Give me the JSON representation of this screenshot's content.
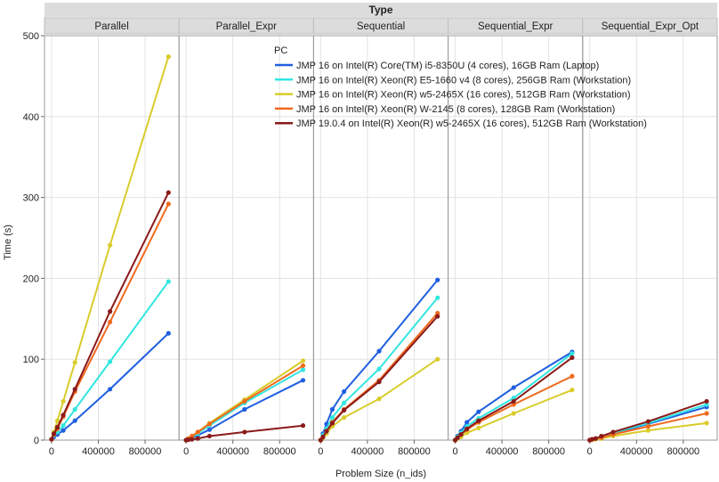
{
  "chart_data": {
    "type": "line",
    "title": "Type",
    "xlabel": "Problem Size (n_ids)",
    "ylabel": "Time (s)",
    "ylim": [
      0,
      500
    ],
    "xlim": [
      -30000,
      1060000
    ],
    "yticks": [
      0,
      100,
      200,
      300,
      400,
      500
    ],
    "xticks": [
      0,
      400000,
      800000
    ],
    "grid": true,
    "legend": {
      "title": "PC",
      "placement": "top-right"
    },
    "x": [
      0,
      20000,
      50000,
      100000,
      200000,
      500000,
      1000000
    ],
    "panels": [
      {
        "name": "Parallel",
        "series": [
          {
            "name": "JMP 16 on Intel(R) Core(TM) i5-8350U (4 cores), 16GB Ram (Laptop)",
            "color": "#1f5fe0",
            "values": [
              1,
              4,
              7,
              12,
              24,
              63,
              132
            ]
          },
          {
            "name": "JMP 16 on Intel(R) Xeon(R) E5-1660 v4 (8 cores), 256GB Ram (Workstation)",
            "color": "#33e6e0",
            "values": [
              1,
              6,
              10,
              18,
              38,
              97,
              196
            ]
          },
          {
            "name": "JMP 16 on Intel(R) Xeon(R) w5-2465X (16 cores), 512GB Ram (Workstation)",
            "color": "#d9cc2a",
            "values": [
              1,
              10,
              24,
              48,
              96,
              241,
              474
            ]
          },
          {
            "name": "JMP 16 on Intel(R) Xeon(R) W-2145 (8 cores), 128GB Ram (Workstation)",
            "color": "#f06a1e",
            "values": [
              1,
              7,
              14,
              29,
              60,
              146,
              292
            ]
          },
          {
            "name": "JMP 19.0.4 on Intel(R) Xeon(R) w5-2465X (16 cores), 512GB Ram (Workstation)",
            "color": "#8b1a1a",
            "values": [
              1,
              8,
              16,
              31,
              63,
              159,
              306
            ]
          }
        ]
      },
      {
        "name": "Parallel_Expr",
        "series": [
          {
            "name": "JMP 16 on Intel(R) Core(TM) i5-8350U (4 cores), 16GB Ram (Laptop)",
            "color": "#1f5fe0",
            "values": [
              0,
              1,
              3,
              6,
              13,
              38,
              74
            ]
          },
          {
            "name": "JMP 16 on Intel(R) Xeon(R) E5-1660 v4 (8 cores), 256GB Ram (Workstation)",
            "color": "#33e6e0",
            "values": [
              0,
              2,
              4,
              8,
              18,
              46,
              87
            ]
          },
          {
            "name": "JMP 16 on Intel(R) Xeon(R) w5-2465X (16 cores), 512GB Ram (Workstation)",
            "color": "#d9cc2a",
            "values": [
              0,
              2,
              5,
              10,
              21,
              50,
              98
            ]
          },
          {
            "name": "JMP 16 on Intel(R) Xeon(R) W-2145 (8 cores), 128GB Ram (Workstation)",
            "color": "#f06a1e",
            "values": [
              0,
              2,
              5,
              10,
              20,
              48,
              92
            ]
          },
          {
            "name": "JMP 19.0.4 on Intel(R) Xeon(R) w5-2465X (16 cores), 512GB Ram (Workstation)",
            "color": "#8b1a1a",
            "values": [
              0,
              0.5,
              1,
              2,
              5,
              10,
              18
            ]
          }
        ]
      },
      {
        "name": "Sequential",
        "series": [
          {
            "name": "JMP 16 on Intel(R) Core(TM) i5-8350U (4 cores), 16GB Ram (Laptop)",
            "color": "#1f5fe0",
            "values": [
              0,
              8,
              20,
              38,
              60,
              110,
              198
            ]
          },
          {
            "name": "JMP 16 on Intel(R) Xeon(R) E5-1660 v4 (8 cores), 256GB Ram (Workstation)",
            "color": "#33e6e0",
            "values": [
              0,
              6,
              14,
              28,
              46,
              88,
              176
            ]
          },
          {
            "name": "JMP 16 on Intel(R) Xeon(R) w5-2465X (16 cores), 512GB Ram (Workstation)",
            "color": "#d9cc2a",
            "values": [
              0,
              3,
              8,
              17,
              28,
              51,
              100
            ]
          },
          {
            "name": "JMP 16 on Intel(R) Xeon(R) W-2145 (8 cores), 128GB Ram (Workstation)",
            "color": "#f06a1e",
            "values": [
              0,
              4,
              11,
              22,
              38,
              74,
              157
            ]
          },
          {
            "name": "JMP 19.0.4 on Intel(R) Xeon(R) w5-2465X (16 cores), 512GB Ram (Workstation)",
            "color": "#8b1a1a",
            "values": [
              0,
              4,
              11,
              21,
              37,
              72,
              153
            ]
          }
        ]
      },
      {
        "name": "Sequential_Expr",
        "series": [
          {
            "name": "JMP 16 on Intel(R) Core(TM) i5-8350U (4 cores), 16GB Ram (Laptop)",
            "color": "#1f5fe0",
            "values": [
              0,
              5,
              11,
              22,
              35,
              65,
              109
            ]
          },
          {
            "name": "JMP 16 on Intel(R) Xeon(R) E5-1660 v4 (8 cores), 256GB Ram (Workstation)",
            "color": "#33e6e0",
            "values": [
              0,
              4,
              9,
              17,
              27,
              52,
              107
            ]
          },
          {
            "name": "JMP 16 on Intel(R) Xeon(R) w5-2465X (16 cores), 512GB Ram (Workstation)",
            "color": "#d9cc2a",
            "values": [
              0,
              2,
              4,
              9,
              15,
              33,
              62
            ]
          },
          {
            "name": "JMP 16 on Intel(R) Xeon(R) W-2145 (8 cores), 128GB Ram (Workstation)",
            "color": "#f06a1e",
            "values": [
              0,
              3,
              7,
              13,
              22,
              44,
              79
            ]
          },
          {
            "name": "JMP 19.0.4 on Intel(R) Xeon(R) w5-2465X (16 cores), 512GB Ram (Workstation)",
            "color": "#8b1a1a",
            "values": [
              0,
              3,
              7,
              14,
              24,
              48,
              102
            ]
          }
        ]
      },
      {
        "name": "Sequential_Expr_Opt",
        "series": [
          {
            "name": "JMP 16 on Intel(R) Core(TM) i5-8350U (4 cores), 16GB Ram (Laptop)",
            "color": "#1f5fe0",
            "values": [
              0,
              1,
              2,
              4,
              8,
              20,
              41
            ]
          },
          {
            "name": "JMP 16 on Intel(R) Xeon(R) E5-1660 v4 (8 cores), 256GB Ram (Workstation)",
            "color": "#33e6e0",
            "values": [
              0,
              1,
              2,
              4,
              9,
              21,
              44
            ]
          },
          {
            "name": "JMP 16 on Intel(R) Xeon(R) w5-2465X (16 cores), 512GB Ram (Workstation)",
            "color": "#d9cc2a",
            "values": [
              0,
              0.5,
              1,
              2,
              5,
              12,
              21
            ]
          },
          {
            "name": "JMP 16 on Intel(R) Xeon(R) W-2145 (8 cores), 128GB Ram (Workstation)",
            "color": "#f06a1e",
            "values": [
              0,
              1,
              2,
              3,
              7,
              17,
              33
            ]
          },
          {
            "name": "JMP 19.0.4 on Intel(R) Xeon(R) w5-2465X (16 cores), 512GB Ram (Workstation)",
            "color": "#8b1a1a",
            "values": [
              0,
              1,
              2,
              5,
              10,
              23,
              48
            ]
          }
        ]
      }
    ]
  }
}
